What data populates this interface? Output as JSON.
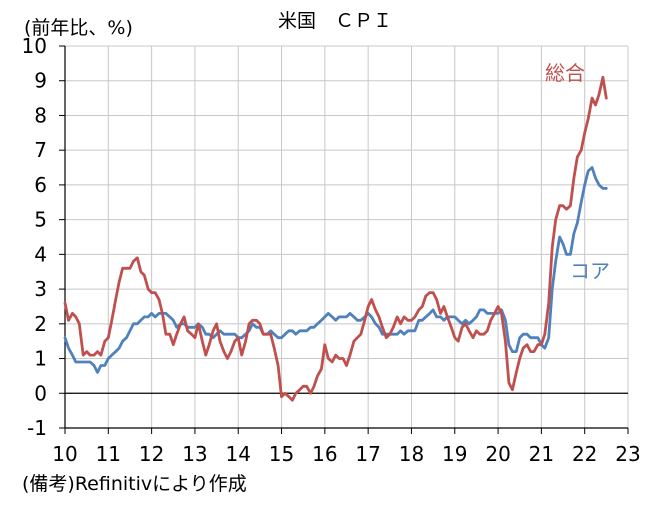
{
  "chart_data": {
    "type": "line",
    "title": "米国　ＣＰＩ",
    "unit_label": "(前年比、%)",
    "note": "(備考)Refinitivにより作成",
    "xlim": [
      2010,
      2023
    ],
    "ylim": [
      -1,
      10
    ],
    "x_ticks": [
      "10",
      "11",
      "12",
      "13",
      "14",
      "15",
      "16",
      "17",
      "18",
      "19",
      "20",
      "21",
      "22",
      "23"
    ],
    "y_ticks": [
      "-1",
      "0",
      "1",
      "2",
      "3",
      "4",
      "5",
      "6",
      "7",
      "8",
      "9",
      "10"
    ],
    "grid": true,
    "series": [
      {
        "name": "総合",
        "color": "#c0504d",
        "points": [
          [
            2010.0,
            2.6
          ],
          [
            2010.08,
            2.1
          ],
          [
            2010.17,
            2.3
          ],
          [
            2010.25,
            2.2
          ],
          [
            2010.33,
            2.0
          ],
          [
            2010.42,
            1.1
          ],
          [
            2010.5,
            1.2
          ],
          [
            2010.58,
            1.1
          ],
          [
            2010.67,
            1.1
          ],
          [
            2010.75,
            1.2
          ],
          [
            2010.83,
            1.1
          ],
          [
            2010.92,
            1.5
          ],
          [
            2011.0,
            1.6
          ],
          [
            2011.08,
            2.1
          ],
          [
            2011.17,
            2.7
          ],
          [
            2011.25,
            3.2
          ],
          [
            2011.33,
            3.6
          ],
          [
            2011.42,
            3.6
          ],
          [
            2011.5,
            3.6
          ],
          [
            2011.58,
            3.8
          ],
          [
            2011.67,
            3.9
          ],
          [
            2011.75,
            3.5
          ],
          [
            2011.83,
            3.4
          ],
          [
            2011.92,
            3.0
          ],
          [
            2012.0,
            2.9
          ],
          [
            2012.08,
            2.9
          ],
          [
            2012.17,
            2.7
          ],
          [
            2012.25,
            2.3
          ],
          [
            2012.33,
            1.7
          ],
          [
            2012.42,
            1.7
          ],
          [
            2012.5,
            1.4
          ],
          [
            2012.58,
            1.7
          ],
          [
            2012.67,
            2.0
          ],
          [
            2012.75,
            2.2
          ],
          [
            2012.83,
            1.8
          ],
          [
            2012.92,
            1.7
          ],
          [
            2013.0,
            1.6
          ],
          [
            2013.08,
            2.0
          ],
          [
            2013.17,
            1.5
          ],
          [
            2013.25,
            1.1
          ],
          [
            2013.33,
            1.4
          ],
          [
            2013.42,
            1.8
          ],
          [
            2013.5,
            2.0
          ],
          [
            2013.58,
            1.5
          ],
          [
            2013.67,
            1.2
          ],
          [
            2013.75,
            1.0
          ],
          [
            2013.83,
            1.2
          ],
          [
            2013.92,
            1.5
          ],
          [
            2014.0,
            1.6
          ],
          [
            2014.08,
            1.1
          ],
          [
            2014.17,
            1.5
          ],
          [
            2014.25,
            2.0
          ],
          [
            2014.33,
            2.1
          ],
          [
            2014.42,
            2.1
          ],
          [
            2014.5,
            2.0
          ],
          [
            2014.58,
            1.7
          ],
          [
            2014.67,
            1.7
          ],
          [
            2014.75,
            1.7
          ],
          [
            2014.83,
            1.3
          ],
          [
            2014.92,
            0.8
          ],
          [
            2015.0,
            -0.1
          ],
          [
            2015.08,
            0.0
          ],
          [
            2015.17,
            -0.1
          ],
          [
            2015.25,
            -0.2
          ],
          [
            2015.33,
            0.0
          ],
          [
            2015.42,
            0.1
          ],
          [
            2015.5,
            0.2
          ],
          [
            2015.58,
            0.2
          ],
          [
            2015.67,
            0.0
          ],
          [
            2015.75,
            0.2
          ],
          [
            2015.83,
            0.5
          ],
          [
            2015.92,
            0.7
          ],
          [
            2016.0,
            1.4
          ],
          [
            2016.08,
            1.0
          ],
          [
            2016.17,
            0.9
          ],
          [
            2016.25,
            1.1
          ],
          [
            2016.33,
            1.0
          ],
          [
            2016.42,
            1.0
          ],
          [
            2016.5,
            0.8
          ],
          [
            2016.58,
            1.1
          ],
          [
            2016.67,
            1.5
          ],
          [
            2016.75,
            1.6
          ],
          [
            2016.83,
            1.7
          ],
          [
            2016.92,
            2.1
          ],
          [
            2017.0,
            2.5
          ],
          [
            2017.08,
            2.7
          ],
          [
            2017.17,
            2.4
          ],
          [
            2017.25,
            2.2
          ],
          [
            2017.33,
            1.9
          ],
          [
            2017.42,
            1.6
          ],
          [
            2017.5,
            1.7
          ],
          [
            2017.58,
            1.9
          ],
          [
            2017.67,
            2.2
          ],
          [
            2017.75,
            2.0
          ],
          [
            2017.83,
            2.2
          ],
          [
            2017.92,
            2.1
          ],
          [
            2018.0,
            2.1
          ],
          [
            2018.08,
            2.2
          ],
          [
            2018.17,
            2.4
          ],
          [
            2018.25,
            2.5
          ],
          [
            2018.33,
            2.8
          ],
          [
            2018.42,
            2.9
          ],
          [
            2018.5,
            2.9
          ],
          [
            2018.58,
            2.7
          ],
          [
            2018.67,
            2.3
          ],
          [
            2018.75,
            2.5
          ],
          [
            2018.83,
            2.2
          ],
          [
            2018.92,
            1.9
          ],
          [
            2019.0,
            1.6
          ],
          [
            2019.08,
            1.5
          ],
          [
            2019.17,
            1.9
          ],
          [
            2019.25,
            2.0
          ],
          [
            2019.33,
            1.8
          ],
          [
            2019.42,
            1.6
          ],
          [
            2019.5,
            1.8
          ],
          [
            2019.58,
            1.7
          ],
          [
            2019.67,
            1.7
          ],
          [
            2019.75,
            1.8
          ],
          [
            2019.83,
            2.1
          ],
          [
            2019.92,
            2.3
          ],
          [
            2020.0,
            2.5
          ],
          [
            2020.08,
            2.3
          ],
          [
            2020.17,
            1.5
          ],
          [
            2020.25,
            0.3
          ],
          [
            2020.33,
            0.1
          ],
          [
            2020.42,
            0.6
          ],
          [
            2020.5,
            1.0
          ],
          [
            2020.58,
            1.3
          ],
          [
            2020.67,
            1.4
          ],
          [
            2020.75,
            1.2
          ],
          [
            2020.83,
            1.2
          ],
          [
            2020.92,
            1.4
          ],
          [
            2021.0,
            1.4
          ],
          [
            2021.08,
            1.7
          ],
          [
            2021.17,
            2.6
          ],
          [
            2021.25,
            4.2
          ],
          [
            2021.33,
            5.0
          ],
          [
            2021.42,
            5.4
          ],
          [
            2021.5,
            5.4
          ],
          [
            2021.58,
            5.3
          ],
          [
            2021.67,
            5.4
          ],
          [
            2021.75,
            6.2
          ],
          [
            2021.83,
            6.8
          ],
          [
            2021.92,
            7.0
          ],
          [
            2022.0,
            7.5
          ],
          [
            2022.08,
            7.9
          ],
          [
            2022.17,
            8.5
          ],
          [
            2022.25,
            8.3
          ],
          [
            2022.33,
            8.6
          ],
          [
            2022.42,
            9.1
          ],
          [
            2022.5,
            8.5
          ]
        ]
      },
      {
        "name": "コア",
        "color": "#4f81bd",
        "points": [
          [
            2010.0,
            1.6
          ],
          [
            2010.08,
            1.3
          ],
          [
            2010.17,
            1.1
          ],
          [
            2010.25,
            0.9
          ],
          [
            2010.33,
            0.9
          ],
          [
            2010.42,
            0.9
          ],
          [
            2010.5,
            0.9
          ],
          [
            2010.58,
            0.9
          ],
          [
            2010.67,
            0.8
          ],
          [
            2010.75,
            0.6
          ],
          [
            2010.83,
            0.8
          ],
          [
            2010.92,
            0.8
          ],
          [
            2011.0,
            1.0
          ],
          [
            2011.08,
            1.1
          ],
          [
            2011.17,
            1.2
          ],
          [
            2011.25,
            1.3
          ],
          [
            2011.33,
            1.5
          ],
          [
            2011.42,
            1.6
          ],
          [
            2011.5,
            1.8
          ],
          [
            2011.58,
            2.0
          ],
          [
            2011.67,
            2.0
          ],
          [
            2011.75,
            2.1
          ],
          [
            2011.83,
            2.2
          ],
          [
            2011.92,
            2.2
          ],
          [
            2012.0,
            2.3
          ],
          [
            2012.08,
            2.2
          ],
          [
            2012.17,
            2.3
          ],
          [
            2012.25,
            2.3
          ],
          [
            2012.33,
            2.3
          ],
          [
            2012.42,
            2.2
          ],
          [
            2012.5,
            2.1
          ],
          [
            2012.58,
            1.9
          ],
          [
            2012.67,
            2.0
          ],
          [
            2012.75,
            2.0
          ],
          [
            2012.83,
            1.9
          ],
          [
            2012.92,
            1.9
          ],
          [
            2013.0,
            1.9
          ],
          [
            2013.08,
            2.0
          ],
          [
            2013.17,
            1.9
          ],
          [
            2013.25,
            1.7
          ],
          [
            2013.33,
            1.7
          ],
          [
            2013.42,
            1.6
          ],
          [
            2013.5,
            1.7
          ],
          [
            2013.58,
            1.8
          ],
          [
            2013.67,
            1.7
          ],
          [
            2013.75,
            1.7
          ],
          [
            2013.83,
            1.7
          ],
          [
            2013.92,
            1.7
          ],
          [
            2014.0,
            1.6
          ],
          [
            2014.08,
            1.6
          ],
          [
            2014.17,
            1.7
          ],
          [
            2014.25,
            1.8
          ],
          [
            2014.33,
            2.0
          ],
          [
            2014.42,
            1.9
          ],
          [
            2014.5,
            1.9
          ],
          [
            2014.58,
            1.7
          ],
          [
            2014.67,
            1.7
          ],
          [
            2014.75,
            1.8
          ],
          [
            2014.83,
            1.7
          ],
          [
            2014.92,
            1.6
          ],
          [
            2015.0,
            1.6
          ],
          [
            2015.08,
            1.7
          ],
          [
            2015.17,
            1.8
          ],
          [
            2015.25,
            1.8
          ],
          [
            2015.33,
            1.7
          ],
          [
            2015.42,
            1.8
          ],
          [
            2015.5,
            1.8
          ],
          [
            2015.58,
            1.8
          ],
          [
            2015.67,
            1.9
          ],
          [
            2015.75,
            1.9
          ],
          [
            2015.83,
            2.0
          ],
          [
            2015.92,
            2.1
          ],
          [
            2016.0,
            2.2
          ],
          [
            2016.08,
            2.3
          ],
          [
            2016.17,
            2.2
          ],
          [
            2016.25,
            2.1
          ],
          [
            2016.33,
            2.2
          ],
          [
            2016.42,
            2.2
          ],
          [
            2016.5,
            2.2
          ],
          [
            2016.58,
            2.3
          ],
          [
            2016.67,
            2.2
          ],
          [
            2016.75,
            2.1
          ],
          [
            2016.83,
            2.1
          ],
          [
            2016.92,
            2.2
          ],
          [
            2017.0,
            2.3
          ],
          [
            2017.08,
            2.2
          ],
          [
            2017.17,
            2.0
          ],
          [
            2017.25,
            1.9
          ],
          [
            2017.33,
            1.7
          ],
          [
            2017.42,
            1.7
          ],
          [
            2017.5,
            1.7
          ],
          [
            2017.58,
            1.7
          ],
          [
            2017.67,
            1.7
          ],
          [
            2017.75,
            1.8
          ],
          [
            2017.83,
            1.7
          ],
          [
            2017.92,
            1.8
          ],
          [
            2018.0,
            1.8
          ],
          [
            2018.08,
            1.8
          ],
          [
            2018.17,
            2.1
          ],
          [
            2018.25,
            2.1
          ],
          [
            2018.33,
            2.2
          ],
          [
            2018.42,
            2.3
          ],
          [
            2018.5,
            2.4
          ],
          [
            2018.58,
            2.2
          ],
          [
            2018.67,
            2.2
          ],
          [
            2018.75,
            2.1
          ],
          [
            2018.83,
            2.2
          ],
          [
            2018.92,
            2.2
          ],
          [
            2019.0,
            2.2
          ],
          [
            2019.08,
            2.1
          ],
          [
            2019.17,
            2.0
          ],
          [
            2019.25,
            2.1
          ],
          [
            2019.33,
            2.0
          ],
          [
            2019.42,
            2.1
          ],
          [
            2019.5,
            2.2
          ],
          [
            2019.58,
            2.4
          ],
          [
            2019.67,
            2.4
          ],
          [
            2019.75,
            2.3
          ],
          [
            2019.83,
            2.3
          ],
          [
            2019.92,
            2.3
          ],
          [
            2020.0,
            2.3
          ],
          [
            2020.08,
            2.4
          ],
          [
            2020.17,
            2.1
          ],
          [
            2020.25,
            1.4
          ],
          [
            2020.33,
            1.2
          ],
          [
            2020.42,
            1.2
          ],
          [
            2020.5,
            1.6
          ],
          [
            2020.58,
            1.7
          ],
          [
            2020.67,
            1.7
          ],
          [
            2020.75,
            1.6
          ],
          [
            2020.83,
            1.6
          ],
          [
            2020.92,
            1.6
          ],
          [
            2021.0,
            1.4
          ],
          [
            2021.08,
            1.3
          ],
          [
            2021.17,
            1.6
          ],
          [
            2021.25,
            3.0
          ],
          [
            2021.33,
            3.8
          ],
          [
            2021.42,
            4.5
          ],
          [
            2021.5,
            4.3
          ],
          [
            2021.58,
            4.0
          ],
          [
            2021.67,
            4.0
          ],
          [
            2021.75,
            4.6
          ],
          [
            2021.83,
            4.9
          ],
          [
            2021.92,
            5.5
          ],
          [
            2022.0,
            6.0
          ],
          [
            2022.08,
            6.4
          ],
          [
            2022.17,
            6.5
          ],
          [
            2022.25,
            6.2
          ],
          [
            2022.33,
            6.0
          ],
          [
            2022.42,
            5.9
          ],
          [
            2022.5,
            5.9
          ]
        ]
      }
    ]
  }
}
